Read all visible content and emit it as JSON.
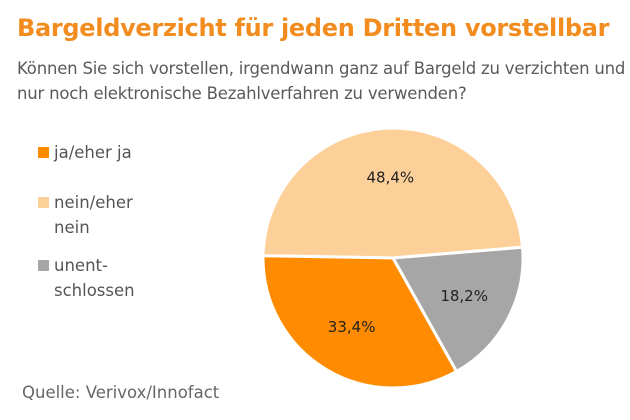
{
  "header": {
    "title": "Bargeldverzicht für jeden Dritten vorstellbar",
    "subtitle": "Können Sie sich vorstellen, irgendwann ganz auf Bargeld zu verzichten und nur noch elektronische Bezahlverfahren zu verwenden?"
  },
  "footer": {
    "source": "Quelle: Verivox/Innofact"
  },
  "chart_data": {
    "type": "pie",
    "title": "Bargeldverzicht für jeden Dritten vorstellbar",
    "legend_position": "left",
    "slices": [
      {
        "label": "ja/eher ja",
        "value": 33.4,
        "display": "33,4%",
        "color": "#ff8c00"
      },
      {
        "label": "nein/eher nein",
        "value": 48.4,
        "display": "48,4%",
        "color": "#fdd09a"
      },
      {
        "label": "unent-schlossen",
        "value": 18.2,
        "display": "18,2%",
        "color": "#a6a6a6"
      }
    ],
    "legend": [
      {
        "label": "ja/eher ja",
        "color": "#ff8c00"
      },
      {
        "label": "nein/eher nein",
        "color": "#fdd09a"
      },
      {
        "label": "unent-schlossen",
        "color": "#a6a6a6"
      }
    ]
  }
}
